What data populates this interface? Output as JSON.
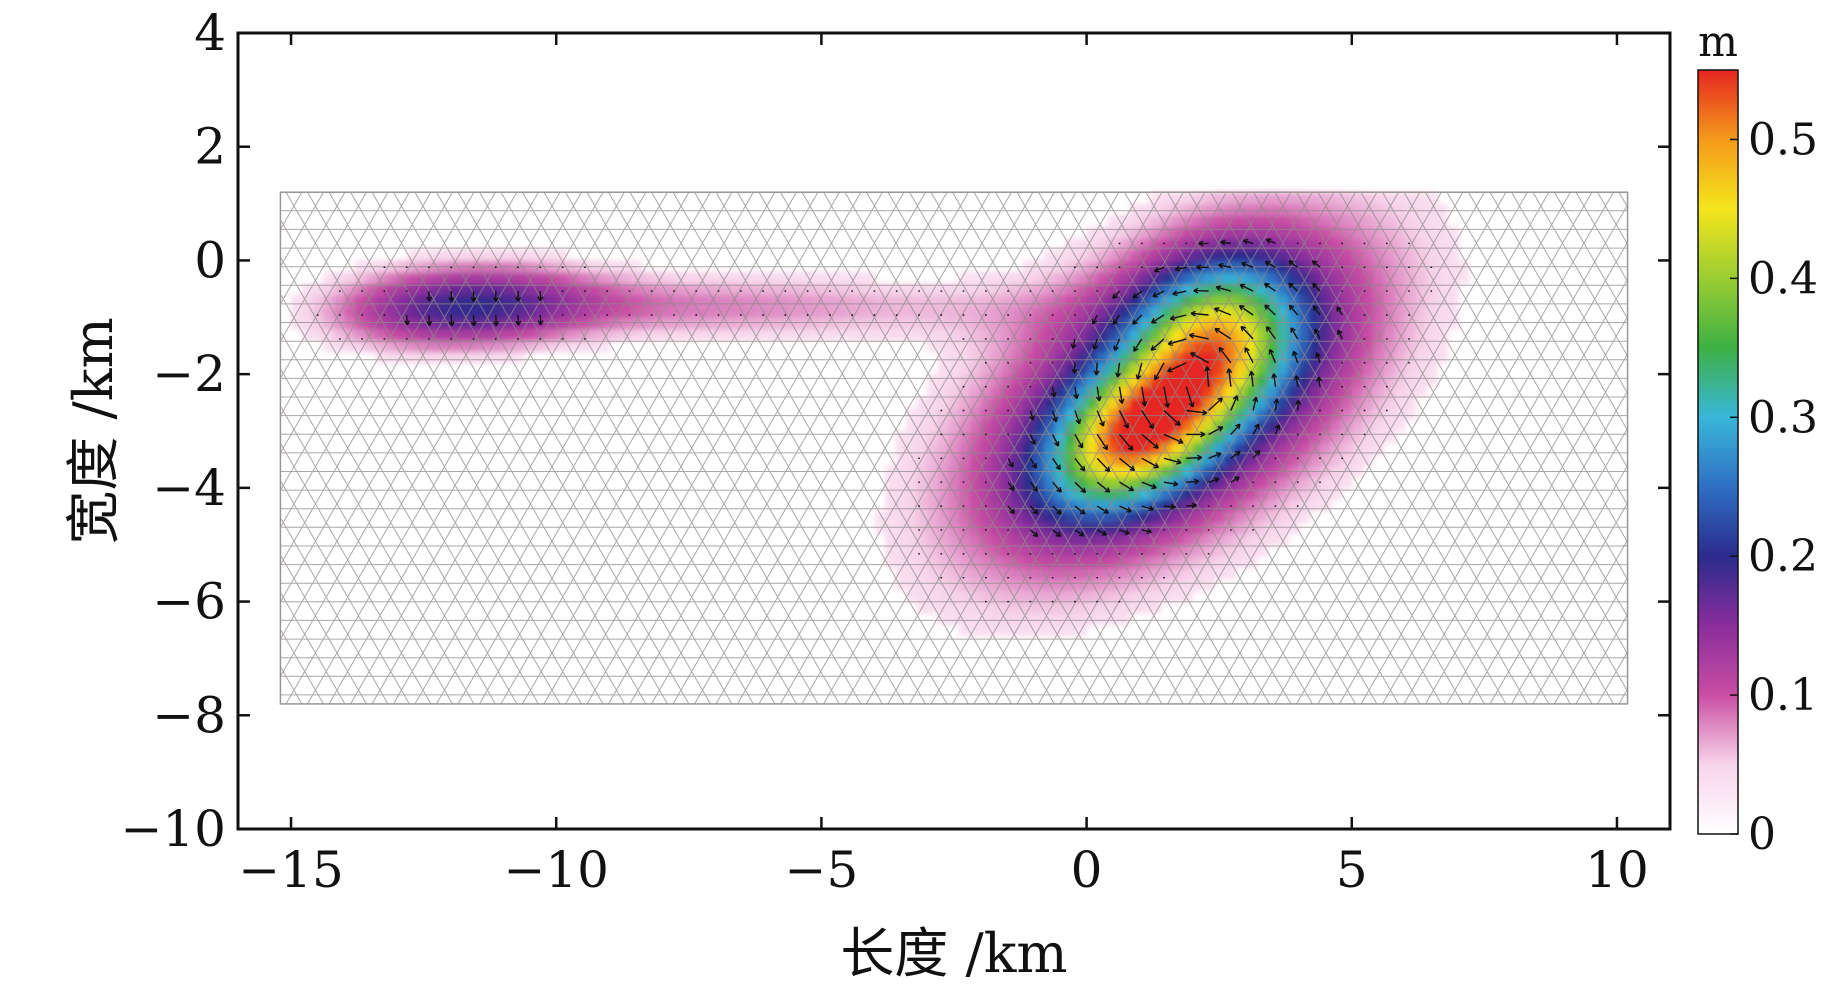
{
  "chart_data": {
    "type": "heatmap",
    "title": "",
    "xlabel": "长度 /km",
    "ylabel": "宽度 /km",
    "xlim": [
      -16,
      11
    ],
    "ylim": [
      -10,
      4
    ],
    "x_ticks": [
      -15,
      -10,
      -5,
      0,
      5,
      10
    ],
    "x_tick_labels": [
      "−15",
      "−10",
      "−5",
      "0",
      "5",
      "10"
    ],
    "y_ticks": [
      4,
      2,
      0,
      -2,
      -4,
      -6,
      -8,
      -10
    ],
    "y_tick_labels": [
      "4",
      "2",
      "0",
      "−2",
      "−4",
      "−6",
      "−8",
      "−10"
    ],
    "fault_mesh": {
      "x_range": [
        -15.2,
        10.2
      ],
      "y_range": [
        -7.8,
        1.2
      ]
    },
    "colorbar": {
      "unit": "m",
      "range": [
        0,
        0.55
      ],
      "ticks": [
        0,
        0.1,
        0.2,
        0.3,
        0.4,
        0.5
      ],
      "tick_labels": [
        "0",
        "0.1",
        "0.2",
        "0.3",
        "0.4",
        "0.5"
      ],
      "colors": [
        "#ffffff",
        "#f7d4ea",
        "#c94ea3",
        "#8a2d9c",
        "#2b2b8c",
        "#2f6fc4",
        "#39b7d9",
        "#3db043",
        "#9acd32",
        "#f5e51b",
        "#f59a1b",
        "#e52620"
      ]
    },
    "slip_patches": [
      {
        "name": "",
        "center_x": 1.0,
        "center_y": -3.0,
        "peak_slip": 0.55
      },
      {
        "name": "",
        "center_x": 2.5,
        "center_y": -1.3,
        "peak_slip": 0.47
      },
      {
        "name": "",
        "center_x": -11.8,
        "center_y": -0.8,
        "peak_slip": 0.18
      },
      {
        "name": "",
        "center_x": -6.0,
        "center_y": -0.8,
        "peak_slip": 0.12
      }
    ]
  }
}
